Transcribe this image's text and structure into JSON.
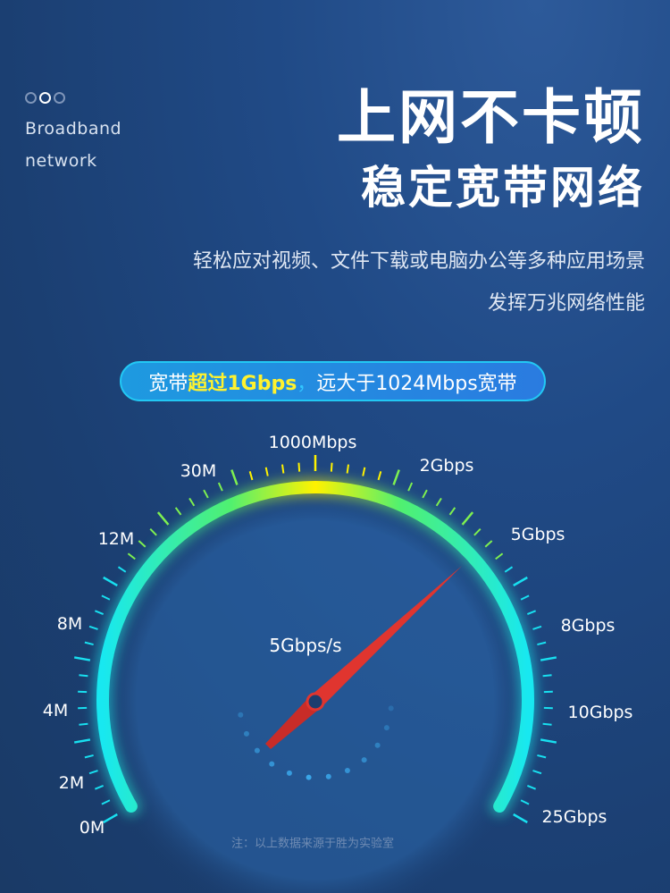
{
  "header": {
    "english_line1": "Broadband",
    "english_line2": "network",
    "title": "上网不卡顿",
    "subtitle": "稳定宽带网络",
    "desc_line1": "轻松应对视频、文件下载或电脑办公等多种应用场景",
    "desc_line2": "发挥万兆网络性能"
  },
  "pagination": {
    "count": 3,
    "active_index": 1
  },
  "banner": {
    "part1": "宽带",
    "highlight": "超过1Gbps",
    "comma": "，",
    "part2": "远大于1024Mbps宽带"
  },
  "gauge": {
    "labels": [
      "0M",
      "2M",
      "4M",
      "8M",
      "12M",
      "30M",
      "1000Mbps",
      "2Gbps",
      "5Gbps",
      "8Gbps",
      "10Gbps",
      "25Gbps"
    ],
    "reading": "5Gbps/s",
    "needle_label": "5Gbps",
    "colors": {
      "low": "#18e8f0",
      "mid": "#55f060",
      "peak": "#fff200",
      "needle": "#e0352f"
    }
  },
  "footnote": "注：以上数据来源于胜为实验室"
}
